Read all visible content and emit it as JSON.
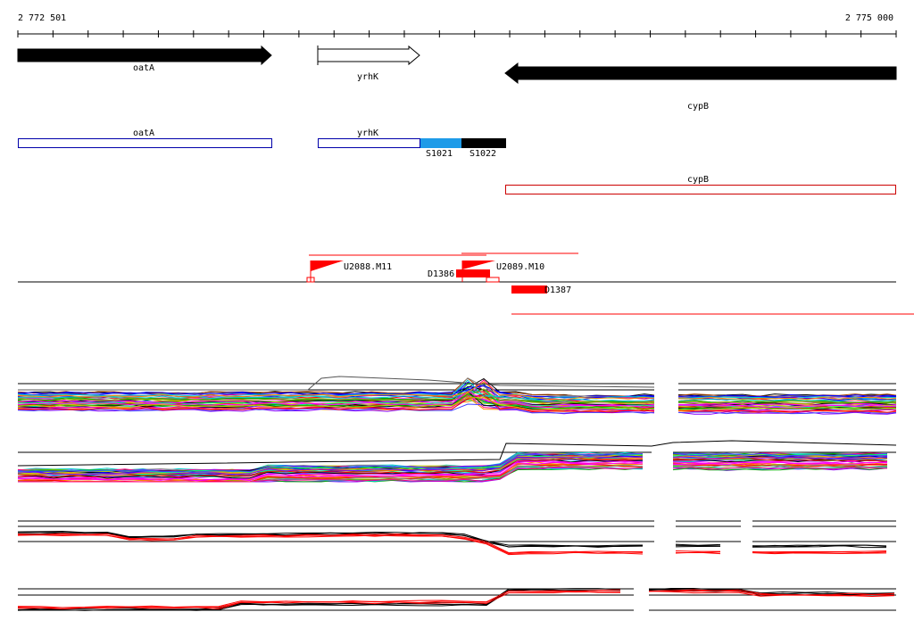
{
  "ruler": {
    "start_label": "2 772 501",
    "end_label": "2 775 000"
  },
  "genes": {
    "oatA": {
      "label": "oatA",
      "strand": "+",
      "color": "#000000"
    },
    "yrhK": {
      "label": "yrhK",
      "strand": "+",
      "color": "#ffffff"
    },
    "cypB": {
      "label": "cypB",
      "strand": "-",
      "color": "#000000"
    }
  },
  "annotation_boxes": {
    "oatA": {
      "label": "oatA",
      "outline": "#0000aa"
    },
    "yrhK": {
      "label": "yrhK",
      "outline": "#0000aa"
    },
    "S1021": {
      "label": "S1021",
      "fill": "#1e9be8"
    },
    "S1022": {
      "label": "S1022",
      "fill": "#000000"
    },
    "cypB": {
      "label": "cypB",
      "outline": "#cc0000"
    }
  },
  "features": {
    "U2088": {
      "label": "U2088.M11",
      "color": "#ff0000"
    },
    "U2089": {
      "label": "U2089.M10",
      "color": "#ff0000"
    },
    "D1386": {
      "label": "D1386",
      "color": "#ff0000"
    },
    "D1387": {
      "label": "D1387",
      "color": "#ff0000"
    }
  },
  "track_colors": [
    "#000000",
    "#ff0000",
    "#00aa00",
    "#0000ff",
    "#ff00ff",
    "#00cccc",
    "#cccc00",
    "#ff8800",
    "#8800ff",
    "#888888",
    "#00ff88",
    "#ff0088",
    "#4444ff",
    "#88aa00",
    "#aa4400"
  ]
}
